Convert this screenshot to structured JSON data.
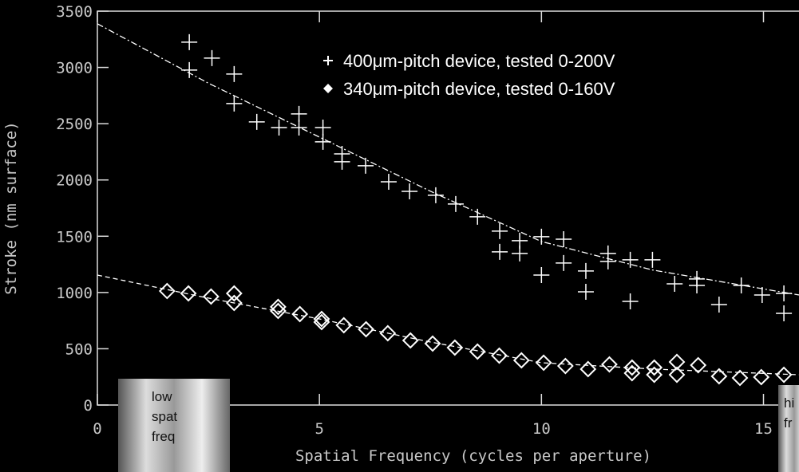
{
  "chart_data": {
    "type": "scatter",
    "xlabel": "Spatial Frequency (cycles per aperture)",
    "ylabel": "Stroke (nm surface)",
    "xlim": [
      0,
      15.8
    ],
    "ylim": [
      0,
      3500
    ],
    "xticks": [
      0,
      5,
      10,
      15
    ],
    "yticks": [
      0,
      500,
      1000,
      1500,
      2000,
      2500,
      3000,
      3500
    ],
    "series": [
      {
        "name": "400μm-pitch device, tested 0-200V",
        "color": "#ffffff",
        "marker": "+",
        "x": [
          2.07,
          2.07,
          2.58,
          3.08,
          3.08,
          3.59,
          4.09,
          4.54,
          4.54,
          5.08,
          5.08,
          5.51,
          5.51,
          6.04,
          6.56,
          7.03,
          7.62,
          8.07,
          8.56,
          9.06,
          9.06,
          9.51,
          9.51,
          10,
          10,
          10.5,
          10.5,
          11,
          11,
          11.5,
          11.5,
          12,
          12,
          12.5,
          13,
          13.5,
          13.5,
          14,
          14.5,
          14.97,
          15.46,
          15.46
        ],
        "y": [
          3225,
          2977,
          3083,
          2941,
          2679,
          2516,
          2466,
          2587,
          2466,
          2466,
          2339,
          2232,
          2162,
          2126,
          1984,
          1899,
          1864,
          1786,
          1673,
          1545,
          1361,
          1460,
          1347,
          1496,
          1155,
          1474,
          1262,
          1191,
          1006,
          1347,
          1276,
          1290,
          921,
          1290,
          1077,
          1120,
          1063,
          893,
          1063,
          978,
          992,
          815
        ]
      },
      {
        "name": "340μm-pitch device, tested 0-160V",
        "color": "#ffffff",
        "marker": "diamond",
        "x": [
          1.57,
          2.05,
          2.56,
          3.08,
          3.08,
          4.07,
          4.07,
          4.56,
          5.05,
          5.05,
          5.55,
          6.05,
          6.54,
          7.05,
          7.55,
          8.05,
          8.56,
          9.05,
          9.55,
          10.05,
          10.54,
          11.05,
          11.53,
          12.04,
          12.04,
          12.54,
          12.54,
          13.05,
          13.05,
          13.53,
          14,
          14.47,
          14.95,
          15.46
        ],
        "y": [
          1013,
          992,
          964,
          992,
          907,
          872,
          836,
          808,
          765,
          737,
          709,
          673,
          638,
          574,
          546,
          510,
          475,
          439,
          397,
          376,
          347,
          319,
          361,
          333,
          283,
          333,
          269,
          383,
          269,
          354,
          255,
          241,
          248,
          269
        ]
      },
      {
        "color": "#ffffff",
        "dash": "8,3,2,3",
        "x": [
          0,
          2.5,
          5,
          7.5,
          10,
          12.5,
          15.8
        ],
        "y": [
          3388,
          2860,
          2381,
          1900,
          1453,
          1200,
          978
        ]
      },
      {
        "color": "#ffffff",
        "dash": "6,4",
        "x": [
          0,
          2.5,
          5,
          7.5,
          10,
          12.5,
          15.8
        ],
        "y": [
          1155,
          950,
          765,
          560,
          376,
          320,
          269
        ]
      }
    ],
    "insets": [
      {
        "lines": [
          "low",
          "spat",
          "freq"
        ]
      },
      {
        "lines": [
          "hi",
          "fr"
        ]
      }
    ]
  }
}
